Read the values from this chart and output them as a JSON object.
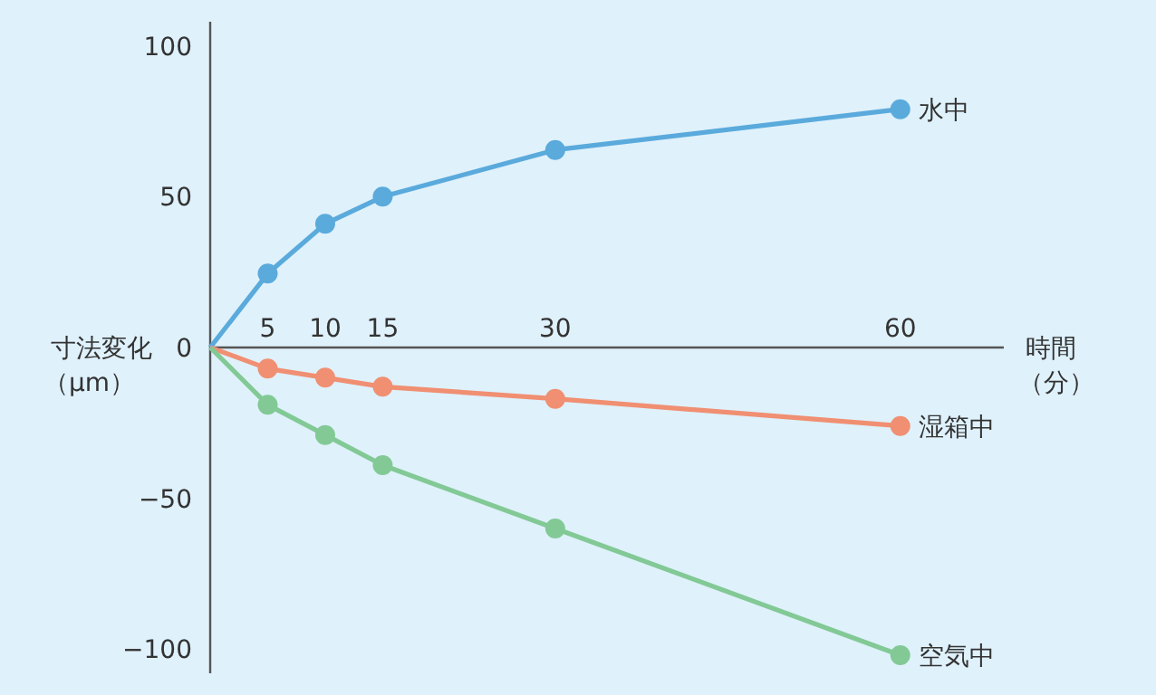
{
  "chart_data": {
    "type": "line",
    "xlabel": "時間（分）",
    "ylabel": "寸法変化（μm）",
    "x": [
      0,
      5,
      10,
      15,
      30,
      60
    ],
    "xlim": [
      0,
      69
    ],
    "ylim": [
      -108,
      108
    ],
    "xticks": [
      5,
      10,
      15,
      30,
      60
    ],
    "yticks": [
      -100,
      -50,
      0,
      50,
      100
    ],
    "marker": "circle",
    "grid": false,
    "series": [
      {
        "name": "水中",
        "color": "#5aaadc",
        "values": [
          0,
          24.5,
          41,
          50,
          65.5,
          79
        ]
      },
      {
        "name": "湿箱中",
        "color": "#f08f72",
        "values": [
          0,
          -7,
          -10,
          -13,
          -17,
          -26
        ]
      },
      {
        "name": "空気中",
        "color": "#82c996",
        "values": [
          0,
          -19,
          -29,
          -39,
          -60,
          -102
        ]
      }
    ]
  }
}
